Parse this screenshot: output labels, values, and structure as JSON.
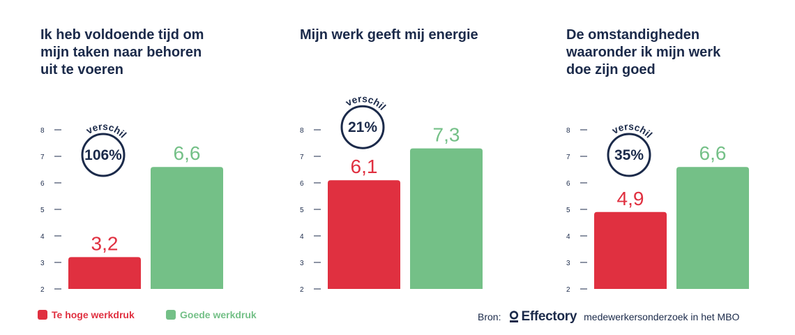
{
  "colors": {
    "red": "#e03040",
    "green": "#74c087",
    "navy": "#1b2a4a",
    "axis": "#1b2a4a"
  },
  "chart_data": [
    {
      "type": "bar",
      "title": "Ik heb voldoende tijd om mijn taken naar behoren uit te voeren",
      "categories": [
        "Te hoge werkdruk",
        "Goede werkdruk"
      ],
      "values": [
        3.2,
        6.6
      ],
      "value_labels": [
        "3,2",
        "6,6"
      ],
      "ylim": [
        2,
        8
      ],
      "yticks": [
        2,
        3,
        4,
        5,
        6,
        7,
        8
      ],
      "difference": {
        "word": "verschil",
        "value": "106%"
      },
      "grid": false
    },
    {
      "type": "bar",
      "title": "Mijn werk geeft mij energie",
      "categories": [
        "Te hoge werkdruk",
        "Goede werkdruk"
      ],
      "values": [
        6.1,
        7.3
      ],
      "value_labels": [
        "6,1",
        "7,3"
      ],
      "ylim": [
        2,
        8
      ],
      "yticks": [
        2,
        3,
        4,
        5,
        6,
        7,
        8
      ],
      "difference": {
        "word": "verschil",
        "value": "21%"
      },
      "grid": false
    },
    {
      "type": "bar",
      "title": "De omstandigheden waaronder ik mijn werk doe zijn goed",
      "categories": [
        "Te hoge werkdruk",
        "Goede werkdruk"
      ],
      "values": [
        4.9,
        6.6
      ],
      "value_labels": [
        "4,9",
        "6,6"
      ],
      "ylim": [
        2,
        8
      ],
      "yticks": [
        2,
        3,
        4,
        5,
        6,
        7,
        8
      ],
      "difference": {
        "word": "verschil",
        "value": "35%"
      },
      "grid": false
    }
  ],
  "legend": {
    "placement": "bottom-left",
    "items": [
      {
        "label": "Te hoge werkdruk",
        "color": "#e03040"
      },
      {
        "label": "Goede werkdruk",
        "color": "#74c087"
      }
    ]
  },
  "source": {
    "prefix": "Bron:",
    "brand": "Effectory",
    "brand_icon": "effectory-logo-icon",
    "text": "medewerkersonderzoek in het MBO"
  }
}
